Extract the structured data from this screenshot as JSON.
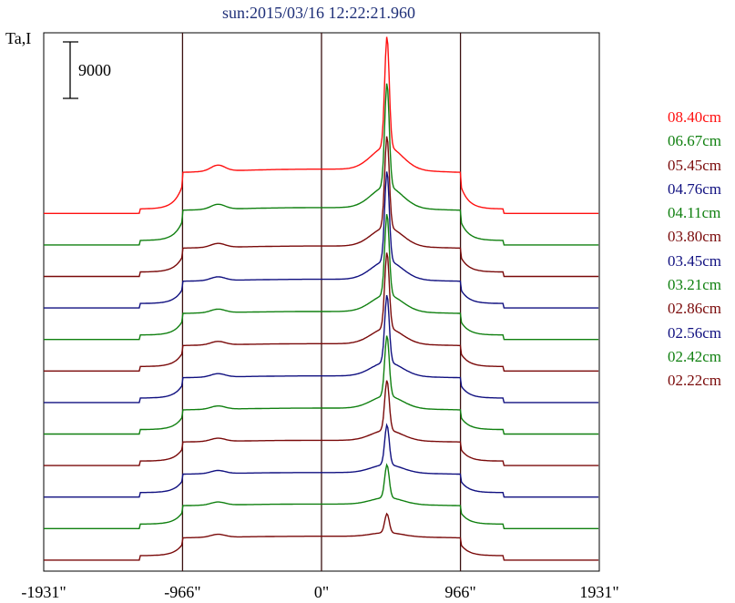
{
  "chart_data": {
    "type": "line",
    "title": "sun:2015/03/16 12:22:21.960",
    "ylabel": "Ta,I",
    "xlabel": "",
    "scale_bar": "9000",
    "xlim": [
      -1931,
      1931
    ],
    "x_ticks": [
      {
        "value": -1931,
        "label": "-1931\""
      },
      {
        "value": -966,
        "label": "-966\""
      },
      {
        "value": 0,
        "label": "0\""
      },
      {
        "value": 966,
        "label": "966\""
      },
      {
        "value": 1931,
        "label": "1931\""
      }
    ],
    "limb_lines": [
      -966,
      0,
      966
    ],
    "grid": false,
    "legend_position": "right",
    "series": [
      {
        "name": "08.40cm",
        "color": "#ff1010",
        "peak": 3.2,
        "disk": 1.15
      },
      {
        "name": "06.67cm",
        "color": "#108010",
        "peak": 3.0,
        "disk": 0.95
      },
      {
        "name": "05.45cm",
        "color": "#7a0a0a",
        "peak": 2.65,
        "disk": 0.75
      },
      {
        "name": "04.76cm",
        "color": "#101080",
        "peak": 2.6,
        "disk": 0.7
      },
      {
        "name": "04.11cm",
        "color": "#108010",
        "peak": 2.35,
        "disk": 0.68
      },
      {
        "name": "03.80cm",
        "color": "#7a0a0a",
        "peak": 2.2,
        "disk": 0.66
      },
      {
        "name": "03.45cm",
        "color": "#101080",
        "peak": 1.95,
        "disk": 0.64
      },
      {
        "name": "03.21cm",
        "color": "#108010",
        "peak": 1.75,
        "disk": 0.62
      },
      {
        "name": "02.86cm",
        "color": "#7a0a0a",
        "peak": 1.45,
        "disk": 0.6
      },
      {
        "name": "02.56cm",
        "color": "#101080",
        "peak": 1.15,
        "disk": 0.58
      },
      {
        "name": "02.42cm",
        "color": "#108010",
        "peak": 0.95,
        "disk": 0.58
      },
      {
        "name": "02.22cm",
        "color": "#7a0a0a",
        "peak": 0.55,
        "disk": 0.56
      }
    ]
  }
}
